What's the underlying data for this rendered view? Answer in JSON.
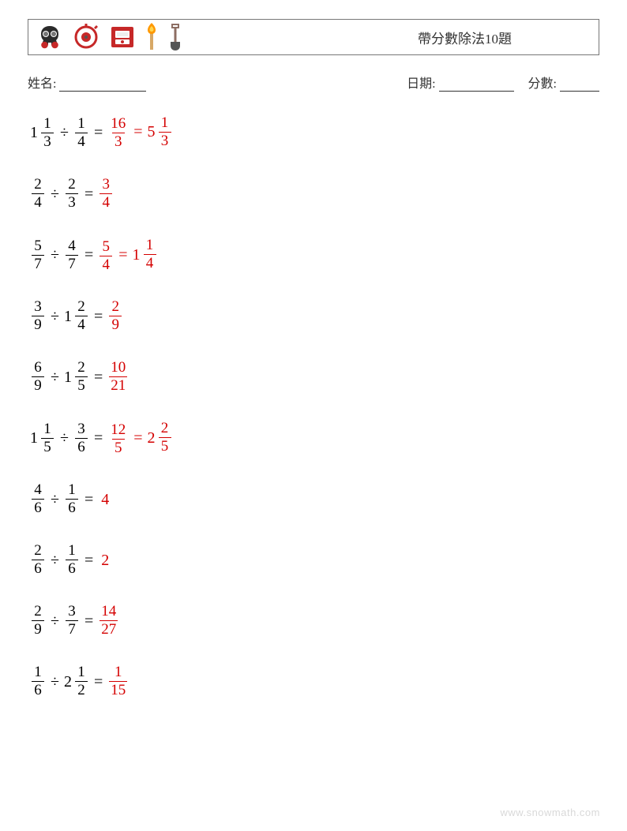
{
  "title": "帶分數除法10題",
  "labels": {
    "name": "姓名:",
    "date": "日期:",
    "score": "分數:"
  },
  "operator": "÷",
  "equals": "=",
  "answer_color": "#d40000",
  "text_color": "#000000",
  "problems": [
    {
      "a": {
        "w": "1",
        "n": "1",
        "d": "3"
      },
      "b": {
        "n": "1",
        "d": "4"
      },
      "r1": {
        "n": "16",
        "d": "3"
      },
      "r2": {
        "w": "5",
        "n": "1",
        "d": "3"
      }
    },
    {
      "a": {
        "n": "2",
        "d": "4"
      },
      "b": {
        "n": "2",
        "d": "3"
      },
      "r1": {
        "n": "3",
        "d": "4"
      }
    },
    {
      "a": {
        "n": "5",
        "d": "7"
      },
      "b": {
        "n": "4",
        "d": "7"
      },
      "r1": {
        "n": "5",
        "d": "4"
      },
      "r2": {
        "w": "1",
        "n": "1",
        "d": "4"
      }
    },
    {
      "a": {
        "n": "3",
        "d": "9"
      },
      "b": {
        "w": "1",
        "n": "2",
        "d": "4"
      },
      "r1": {
        "n": "2",
        "d": "9"
      }
    },
    {
      "a": {
        "n": "6",
        "d": "9"
      },
      "b": {
        "w": "1",
        "n": "2",
        "d": "5"
      },
      "r1": {
        "n": "10",
        "d": "21"
      }
    },
    {
      "a": {
        "w": "1",
        "n": "1",
        "d": "5"
      },
      "b": {
        "n": "3",
        "d": "6"
      },
      "r1": {
        "n": "12",
        "d": "5"
      },
      "r2": {
        "w": "2",
        "n": "2",
        "d": "5"
      }
    },
    {
      "a": {
        "n": "4",
        "d": "6"
      },
      "b": {
        "n": "1",
        "d": "6"
      },
      "rint": "4"
    },
    {
      "a": {
        "n": "2",
        "d": "6"
      },
      "b": {
        "n": "1",
        "d": "6"
      },
      "rint": "2"
    },
    {
      "a": {
        "n": "2",
        "d": "9"
      },
      "b": {
        "n": "3",
        "d": "7"
      },
      "r1": {
        "n": "14",
        "d": "27"
      }
    },
    {
      "a": {
        "n": "1",
        "d": "6"
      },
      "b": {
        "w": "2",
        "n": "1",
        "d": "2"
      },
      "r1": {
        "n": "1",
        "d": "15"
      }
    }
  ],
  "footer": "www.snowmath.com"
}
